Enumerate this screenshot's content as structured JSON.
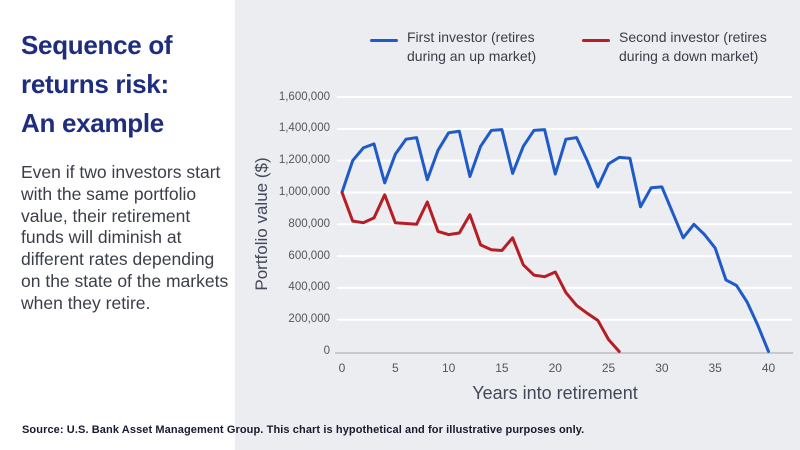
{
  "left_panel": {
    "title_lines": [
      "Sequence of",
      "returns risk:",
      "An example"
    ],
    "body": "Even if two investors start with the same portfolio value, their retirement funds will diminish at different rates depending on the state of the markets when they retire."
  },
  "footer": {
    "source": "Source: U.S. Bank Asset Management Group. This chart is hypothetical and for illustrative purposes only."
  },
  "colors": {
    "title_navy": "#1e2d7e",
    "panel_gray": "#ecedf1",
    "first_investor_blue": "#1f5bc8",
    "second_investor_red": "#b51e24",
    "gridline_white": "#ffffff",
    "axis_line_gray": "#c8c9ce",
    "axis_text_gray": "#53565e"
  },
  "chart_data": {
    "type": "line",
    "title": "",
    "xlabel": "Years into retirement",
    "ylabel": "Portfolio value ($)",
    "xlim": [
      0,
      40
    ],
    "ylim": [
      0,
      1600000
    ],
    "x_ticks": [
      0,
      5,
      10,
      15,
      20,
      25,
      30,
      35,
      40
    ],
    "y_ticks": [
      0,
      200000,
      400000,
      600000,
      800000,
      1000000,
      1200000,
      1400000,
      1600000
    ],
    "grid": "horizontal",
    "legend_position": "top",
    "series": [
      {
        "name": "First investor (retires during an up market)",
        "color": "#1f5bc8",
        "x": [
          0,
          1,
          2,
          3,
          4,
          5,
          6,
          7,
          8,
          9,
          10,
          11,
          12,
          13,
          14,
          15,
          16,
          17,
          18,
          19,
          20,
          21,
          22,
          23,
          24,
          25,
          26,
          27,
          28,
          29,
          30,
          31,
          32,
          33,
          34,
          35,
          36,
          37,
          38,
          39,
          40
        ],
        "values": [
          1000000,
          1200000,
          1280000,
          1305000,
          1060000,
          1240000,
          1335000,
          1345000,
          1080000,
          1265000,
          1375000,
          1385000,
          1100000,
          1290000,
          1390000,
          1395000,
          1120000,
          1290000,
          1390000,
          1395000,
          1115000,
          1335000,
          1345000,
          1200000,
          1035000,
          1180000,
          1220000,
          1215000,
          910000,
          1030000,
          1035000,
          875000,
          715000,
          800000,
          735000,
          650000,
          450000,
          415000,
          310000,
          165000,
          0
        ]
      },
      {
        "name": "Second investor (retires during a down market)",
        "color": "#b51e24",
        "x": [
          0,
          1,
          2,
          3,
          4,
          5,
          6,
          7,
          8,
          9,
          10,
          11,
          12,
          13,
          14,
          15,
          16,
          17,
          18,
          19,
          20,
          21,
          22,
          23,
          24,
          25,
          26
        ],
        "values": [
          1000000,
          820000,
          810000,
          840000,
          985000,
          810000,
          805000,
          800000,
          940000,
          755000,
          735000,
          745000,
          860000,
          670000,
          640000,
          635000,
          715000,
          545000,
          480000,
          470000,
          500000,
          370000,
          290000,
          240000,
          195000,
          75000,
          0
        ]
      }
    ]
  }
}
